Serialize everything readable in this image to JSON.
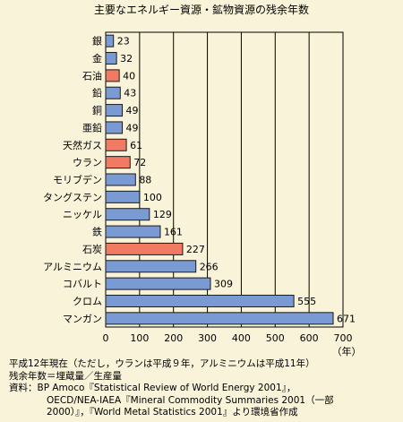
{
  "chart_data": {
    "type": "bar",
    "orientation": "horizontal",
    "title": "主要なエネルギー資源・鉱物資源の残余年数",
    "categories": [
      "銀",
      "金",
      "石油",
      "鉛",
      "銅",
      "亜鉛",
      "天然ガス",
      "ウラン",
      "モリブデン",
      "タングステン",
      "ニッケル",
      "鉄",
      "石炭",
      "アルミニウム",
      "コバルト",
      "クロム",
      "マンガン"
    ],
    "values": [
      23,
      32,
      40,
      43,
      49,
      49,
      61,
      72,
      88,
      100,
      129,
      161,
      227,
      266,
      309,
      555,
      671
    ],
    "highlight": [
      "石油",
      "天然ガス",
      "ウラン",
      "石炭"
    ],
    "xlabel": "",
    "unit": "（年）",
    "xlim": [
      0,
      700
    ],
    "xticks": [
      "0",
      "100",
      "200",
      "300",
      "400",
      "500",
      "600",
      "700"
    ],
    "grid": true,
    "colors": {
      "mineral": "#7a9ad4",
      "energy": "#f07a62",
      "background": "#f8f3d9",
      "bar_stroke": "#1a1a1a"
    }
  },
  "notes": [
    "平成12年現在（ただし，ウランは平成９年，アルミニウムは平成11年）",
    "残余年数＝埋蔵量／生産量",
    "資料：BP Amoco『Statistical Review of World Energy 2001』，",
    "OECD/NEA-IAEA『Mineral Commodity Summaries 2001（一部",
    "2000）』，『World Metal Statistics 2001』より環境省作成"
  ]
}
